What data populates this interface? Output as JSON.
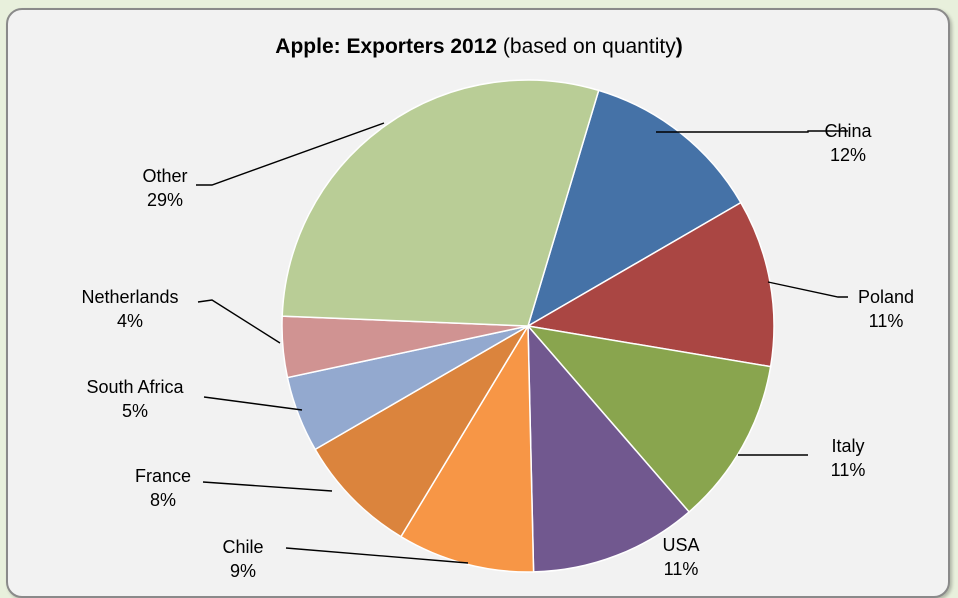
{
  "chart_data": {
    "type": "pie",
    "title": "Apple: Exporters 2012",
    "subtitle_open": "(based on quantity",
    "subtitle_close": ")",
    "slices": [
      {
        "label": "China",
        "value_label": "12%",
        "value": 12,
        "color": "#4572a7"
      },
      {
        "label": "Poland",
        "value_label": "11%",
        "value": 11,
        "color": "#aa4643"
      },
      {
        "label": "Italy",
        "value_label": "11%",
        "value": 11,
        "color": "#89a54e"
      },
      {
        "label": "USA",
        "value_label": "11%",
        "value": 11,
        "color": "#71588f"
      },
      {
        "label": "Chile",
        "value_label": "9%",
        "value": 9,
        "color": "#f79646"
      },
      {
        "label": "France",
        "value_label": "8%",
        "value": 8,
        "color": "#db843d"
      },
      {
        "label": "South Africa",
        "value_label": "5%",
        "value": 5,
        "color": "#93a9cf"
      },
      {
        "label": "Netherlands",
        "value_label": "4%",
        "value": 4,
        "color": "#d09392"
      },
      {
        "label": "Other",
        "value_label": "29%",
        "value": 29,
        "color": "#b9cd96"
      }
    ]
  }
}
